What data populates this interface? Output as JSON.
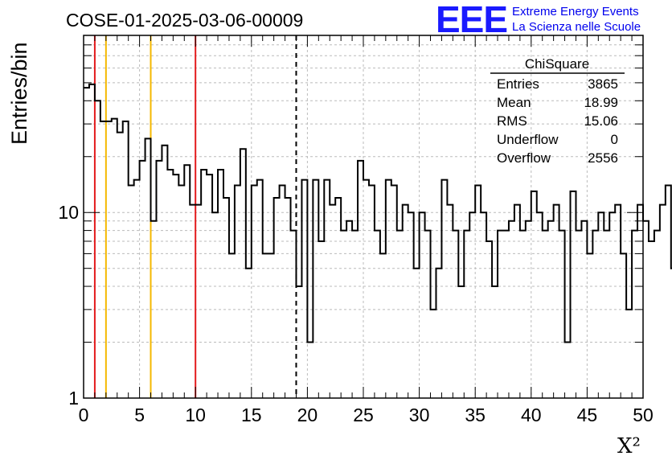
{
  "header": {
    "run_title": "COSE-01-2025-03-06-00009",
    "logo": "EEE",
    "org_line1": "Extreme Energy Events",
    "org_line2": "La Scienza nelle Scuole"
  },
  "stats_box": {
    "name": "ChiSquare",
    "rows": [
      {
        "label": "Entries",
        "value": "3865"
      },
      {
        "label": "Mean",
        "value": "18.99"
      },
      {
        "label": "RMS",
        "value": "15.06"
      },
      {
        "label": "Underflow",
        "value": "0"
      },
      {
        "label": "Overflow",
        "value": "2556"
      }
    ]
  },
  "chart_data": {
    "type": "histogram",
    "title": "COSE-01-2025-03-06-00009",
    "xlabel": "X²",
    "ylabel": "Entries/bin",
    "xlim": [
      0,
      50
    ],
    "ylim": [
      1,
      90
    ],
    "yscale": "log",
    "grid": true,
    "bin_width": 0.5,
    "x_ticks": [
      0,
      5,
      10,
      15,
      20,
      25,
      30,
      35,
      40,
      45,
      50
    ],
    "y_ticks": [
      1,
      10
    ],
    "bin_counts": [
      47,
      49,
      40,
      31,
      31,
      32,
      27,
      31,
      14,
      15,
      19,
      25,
      9,
      19,
      23,
      17,
      16,
      14,
      18,
      11,
      11,
      17,
      16,
      10,
      17,
      12,
      6,
      14,
      22,
      5,
      14,
      15,
      6,
      6,
      12,
      14,
      12,
      8,
      4,
      15,
      2,
      15,
      7,
      15,
      11,
      12,
      8,
      9,
      8,
      19,
      15,
      14,
      8,
      6,
      15,
      14,
      8,
      11,
      10,
      5,
      10,
      8,
      3,
      5,
      15,
      11,
      8,
      4,
      8,
      10,
      14,
      10,
      7,
      4,
      8,
      8,
      9,
      11,
      8,
      9,
      13,
      10,
      8,
      9,
      11,
      8,
      2,
      13,
      8,
      9,
      6,
      8,
      10,
      8,
      10,
      11,
      6,
      3,
      8,
      11,
      9,
      7,
      8,
      11,
      14,
      5
    ],
    "vertical_lines": [
      {
        "x": 1,
        "color": "#e31a1c",
        "style": "solid"
      },
      {
        "x": 2,
        "color": "#f5b800",
        "style": "solid"
      },
      {
        "x": 6,
        "color": "#f5b800",
        "style": "solid"
      },
      {
        "x": 10,
        "color": "#e31a1c",
        "style": "solid"
      },
      {
        "x": 19,
        "color": "#000000",
        "style": "dashed"
      }
    ]
  },
  "colors": {
    "histogram": "#000000",
    "grid": "#bbbbbb",
    "logo": "#1a1aff",
    "org_text": "#0000ee"
  }
}
